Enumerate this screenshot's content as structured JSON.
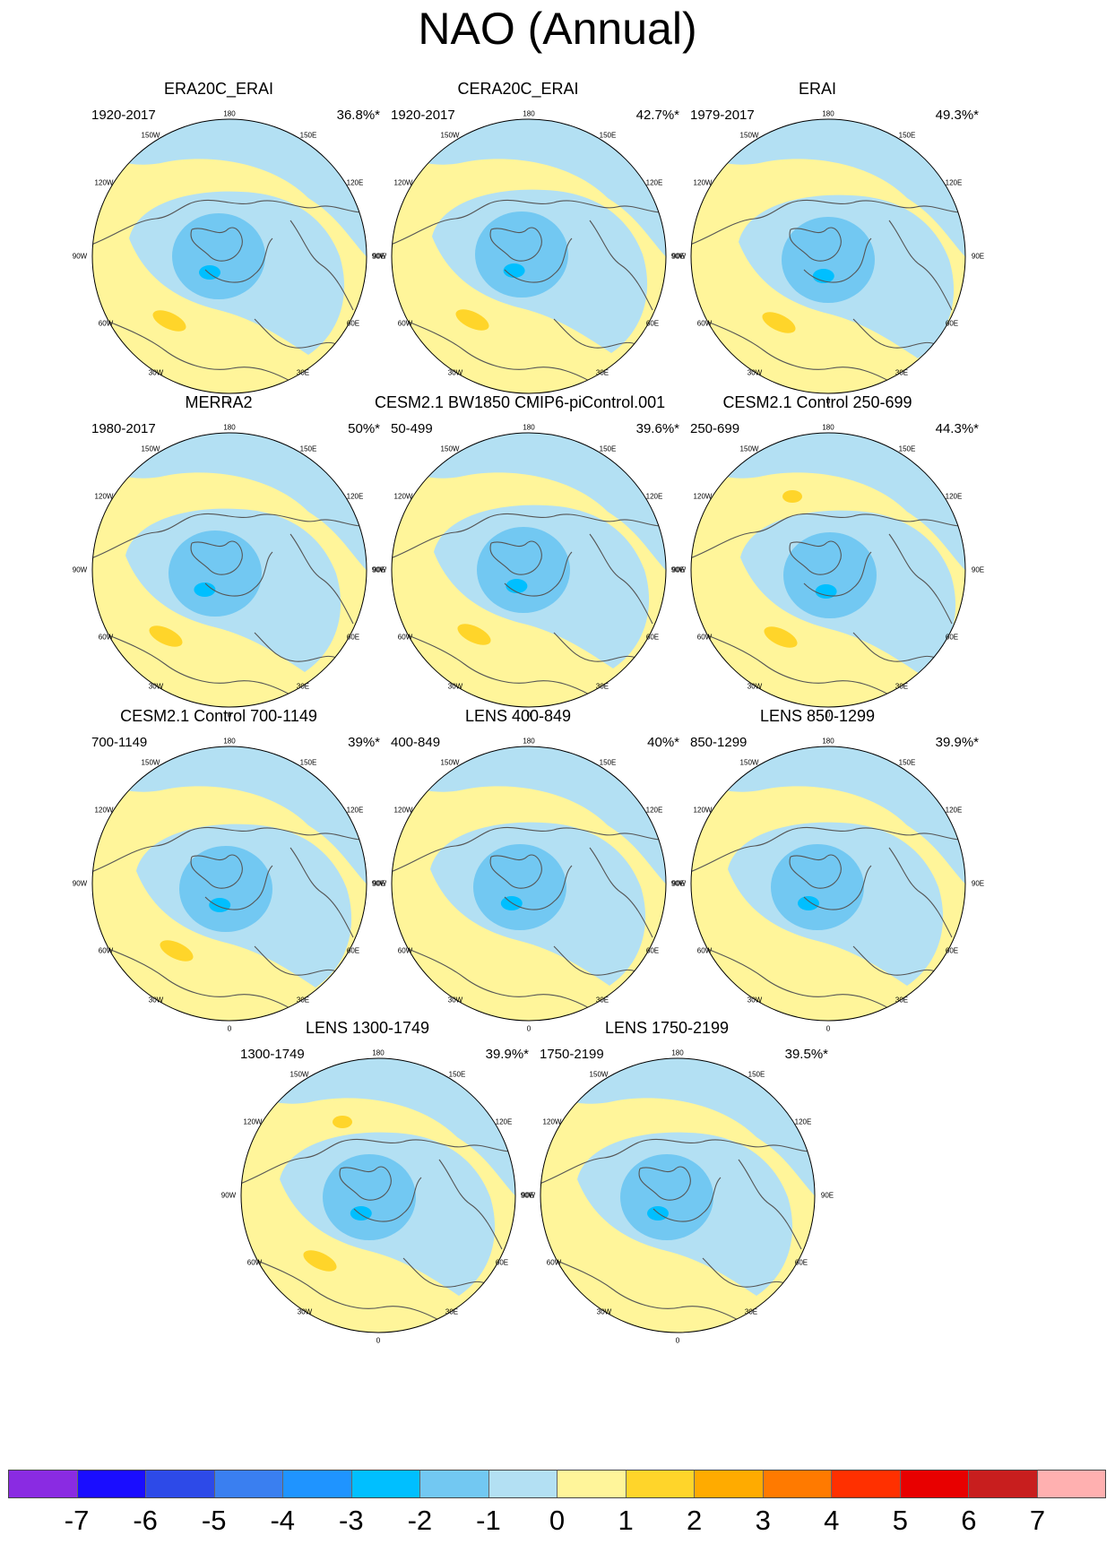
{
  "title": "NAO (Annual)",
  "longitude_labels": {
    "top": "180",
    "upper_left": "150W",
    "upper_right": "150E",
    "left_high": "120W",
    "right_high": "120E",
    "left": "90W",
    "right": "90E",
    "left_low": "60W",
    "right_low": "60E",
    "lower_left": "30W",
    "lower_right": "30E",
    "bottom": "0"
  },
  "panels": [
    {
      "title": "ERA20C_ERAI",
      "years": "1920-2017",
      "percent": "36.8%*"
    },
    {
      "title": "CERA20C_ERAI",
      "years": "1920-2017",
      "percent": "42.7%*"
    },
    {
      "title": "ERAI",
      "years": "1979-2017",
      "percent": "49.3%*"
    },
    {
      "title": "MERRA2",
      "years": "1980-2017",
      "percent": "50%*"
    },
    {
      "title": "CESM2.1 BW1850 CMIP6-piControl.001",
      "years": "50-499",
      "percent": "39.6%*"
    },
    {
      "title": "CESM2.1 Control 250-699",
      "years": "250-699",
      "percent": "44.3%*"
    },
    {
      "title": "CESM2.1 Control 700-1149",
      "years": "700-1149",
      "percent": "39%*"
    },
    {
      "title": "LENS 400-849",
      "years": "400-849",
      "percent": "40%*"
    },
    {
      "title": "LENS 850-1299",
      "years": "850-1299",
      "percent": "39.9%*"
    },
    {
      "title": "LENS 1300-1749",
      "years": "1300-1749",
      "percent": "39.9%*"
    },
    {
      "title": "LENS 1750-2199",
      "years": "1750-2199",
      "percent": "39.5%*"
    }
  ],
  "colorbar": {
    "labels": [
      "-7",
      "-6",
      "-5",
      "-4",
      "-3",
      "-2",
      "-1",
      "0",
      "1",
      "2",
      "3",
      "4",
      "5",
      "6",
      "7"
    ],
    "colors": [
      "#8a2be2",
      "#1a0dff",
      "#2d4ae8",
      "#3a7ff0",
      "#1f94ff",
      "#00bfff",
      "#72c8f2",
      "#b3e0f3",
      "#fff59a",
      "#ffd52a",
      "#ffab00",
      "#ff7a00",
      "#ff3000",
      "#e80000",
      "#c81e1e",
      "#ffb0b0"
    ]
  },
  "map_colors": {
    "positive_weak": "#fff59a",
    "negative_weak": "#b3e0f3",
    "negative_mid": "#72c8f2",
    "negative_strong": "#00bfff",
    "positive_mid": "#ffd52a",
    "coastline": "#555555"
  }
}
